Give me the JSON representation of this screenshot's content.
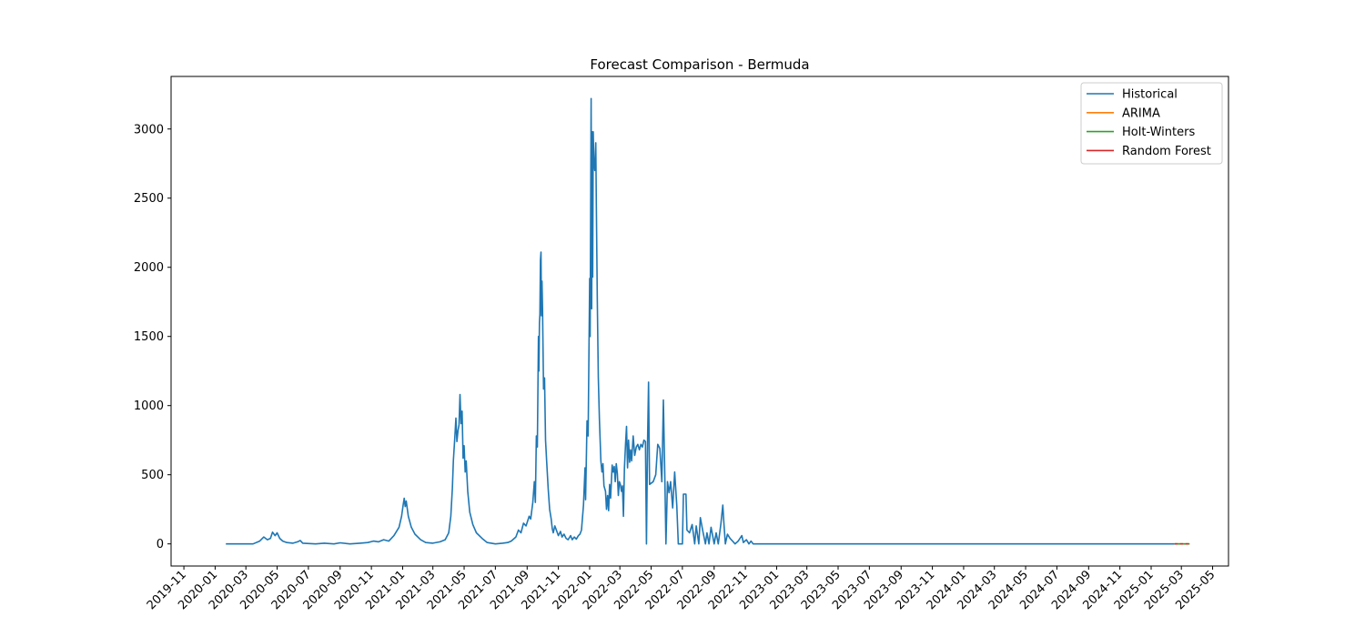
{
  "chart_data": {
    "type": "line",
    "title": "Forecast Comparison - Bermuda",
    "xlabel": "",
    "ylabel": "",
    "xlim": [
      "2019-10-07",
      "2025-06-01"
    ],
    "ylim": [
      -160,
      3380
    ],
    "y_ticks": [
      0,
      500,
      1000,
      1500,
      2000,
      2500,
      3000
    ],
    "x_ticks": [
      "2019-11",
      "2020-01",
      "2020-03",
      "2020-05",
      "2020-07",
      "2020-09",
      "2020-11",
      "2021-01",
      "2021-03",
      "2021-05",
      "2021-07",
      "2021-09",
      "2021-11",
      "2022-01",
      "2022-03",
      "2022-05",
      "2022-07",
      "2022-09",
      "2022-11",
      "2023-01",
      "2023-03",
      "2023-05",
      "2023-07",
      "2023-09",
      "2023-11",
      "2024-01",
      "2024-03",
      "2024-05",
      "2024-07",
      "2024-09",
      "2024-11",
      "2025-01",
      "2025-03",
      "2025-05"
    ],
    "grid": false,
    "legend_position": "top-right",
    "series": [
      {
        "name": "Historical",
        "color": "#1f77b4",
        "points": [
          [
            "2020-01-22",
            0
          ],
          [
            "2020-03-15",
            0
          ],
          [
            "2020-03-28",
            20
          ],
          [
            "2020-04-05",
            50
          ],
          [
            "2020-04-12",
            30
          ],
          [
            "2020-04-18",
            40
          ],
          [
            "2020-04-22",
            85
          ],
          [
            "2020-04-27",
            60
          ],
          [
            "2020-05-01",
            80
          ],
          [
            "2020-05-06",
            40
          ],
          [
            "2020-05-12",
            20
          ],
          [
            "2020-05-20",
            10
          ],
          [
            "2020-06-01",
            5
          ],
          [
            "2020-06-10",
            15
          ],
          [
            "2020-06-15",
            25
          ],
          [
            "2020-06-20",
            5
          ],
          [
            "2020-07-15",
            0
          ],
          [
            "2020-08-01",
            5
          ],
          [
            "2020-08-20",
            0
          ],
          [
            "2020-09-01",
            8
          ],
          [
            "2020-09-20",
            0
          ],
          [
            "2020-10-10",
            5
          ],
          [
            "2020-10-25",
            10
          ],
          [
            "2020-11-05",
            20
          ],
          [
            "2020-11-15",
            15
          ],
          [
            "2020-11-25",
            30
          ],
          [
            "2020-12-05",
            20
          ],
          [
            "2020-12-15",
            60
          ],
          [
            "2020-12-25",
            120
          ],
          [
            "2020-12-30",
            200
          ],
          [
            "2021-01-02",
            280
          ],
          [
            "2021-01-04",
            330
          ],
          [
            "2021-01-06",
            270
          ],
          [
            "2021-01-08",
            310
          ],
          [
            "2021-01-12",
            200
          ],
          [
            "2021-01-18",
            120
          ],
          [
            "2021-01-25",
            70
          ],
          [
            "2021-02-05",
            30
          ],
          [
            "2021-02-15",
            10
          ],
          [
            "2021-03-01",
            5
          ],
          [
            "2021-03-15",
            15
          ],
          [
            "2021-03-25",
            30
          ],
          [
            "2021-04-01",
            80
          ],
          [
            "2021-04-05",
            200
          ],
          [
            "2021-04-08",
            400
          ],
          [
            "2021-04-10",
            600
          ],
          [
            "2021-04-13",
            780
          ],
          [
            "2021-04-15",
            910
          ],
          [
            "2021-04-17",
            740
          ],
          [
            "2021-04-19",
            820
          ],
          [
            "2021-04-21",
            860
          ],
          [
            "2021-04-23",
            1080
          ],
          [
            "2021-04-25",
            870
          ],
          [
            "2021-04-27",
            960
          ],
          [
            "2021-04-29",
            620
          ],
          [
            "2021-05-01",
            710
          ],
          [
            "2021-05-03",
            520
          ],
          [
            "2021-05-05",
            600
          ],
          [
            "2021-05-08",
            380
          ],
          [
            "2021-05-12",
            230
          ],
          [
            "2021-05-18",
            140
          ],
          [
            "2021-05-25",
            80
          ],
          [
            "2021-06-05",
            40
          ],
          [
            "2021-06-15",
            10
          ],
          [
            "2021-07-01",
            0
          ],
          [
            "2021-07-15",
            5
          ],
          [
            "2021-07-25",
            10
          ],
          [
            "2021-08-01",
            20
          ],
          [
            "2021-08-10",
            50
          ],
          [
            "2021-08-15",
            100
          ],
          [
            "2021-08-20",
            80
          ],
          [
            "2021-08-25",
            150
          ],
          [
            "2021-08-30",
            130
          ],
          [
            "2021-09-05",
            200
          ],
          [
            "2021-09-08",
            180
          ],
          [
            "2021-09-12",
            300
          ],
          [
            "2021-09-15",
            450
          ],
          [
            "2021-09-17",
            300
          ],
          [
            "2021-09-19",
            780
          ],
          [
            "2021-09-21",
            700
          ],
          [
            "2021-09-23",
            1500
          ],
          [
            "2021-09-24",
            1250
          ],
          [
            "2021-09-25",
            1600
          ],
          [
            "2021-09-26",
            1660
          ],
          [
            "2021-09-27",
            2050
          ],
          [
            "2021-09-28",
            2110
          ],
          [
            "2021-09-29",
            1650
          ],
          [
            "2021-09-30",
            1900
          ],
          [
            "2021-10-01",
            1700
          ],
          [
            "2021-10-03",
            1120
          ],
          [
            "2021-10-05",
            1200
          ],
          [
            "2021-10-07",
            750
          ],
          [
            "2021-10-09",
            600
          ],
          [
            "2021-10-12",
            400
          ],
          [
            "2021-10-15",
            250
          ],
          [
            "2021-10-18",
            180
          ],
          [
            "2021-10-20",
            110
          ],
          [
            "2021-10-22",
            80
          ],
          [
            "2021-10-25",
            130
          ],
          [
            "2021-10-28",
            100
          ],
          [
            "2021-11-01",
            60
          ],
          [
            "2021-11-05",
            90
          ],
          [
            "2021-11-08",
            50
          ],
          [
            "2021-11-12",
            70
          ],
          [
            "2021-11-16",
            40
          ],
          [
            "2021-11-20",
            30
          ],
          [
            "2021-11-25",
            60
          ],
          [
            "2021-11-28",
            30
          ],
          [
            "2021-12-02",
            50
          ],
          [
            "2021-12-06",
            35
          ],
          [
            "2021-12-10",
            60
          ],
          [
            "2021-12-13",
            70
          ],
          [
            "2021-12-16",
            100
          ],
          [
            "2021-12-20",
            280
          ],
          [
            "2021-12-23",
            550
          ],
          [
            "2021-12-24",
            320
          ],
          [
            "2021-12-27",
            890
          ],
          [
            "2021-12-29",
            780
          ],
          [
            "2022-01-01",
            1920
          ],
          [
            "2022-01-02",
            1500
          ],
          [
            "2022-01-04",
            3220
          ],
          [
            "2022-01-05",
            1700
          ],
          [
            "2022-01-06",
            2980
          ],
          [
            "2022-01-07",
            1930
          ],
          [
            "2022-01-08",
            2980
          ],
          [
            "2022-01-09",
            2780
          ],
          [
            "2022-01-11",
            2700
          ],
          [
            "2022-01-13",
            2900
          ],
          [
            "2022-01-14",
            2460
          ],
          [
            "2022-01-16",
            1750
          ],
          [
            "2022-01-18",
            1200
          ],
          [
            "2022-01-20",
            900
          ],
          [
            "2022-01-23",
            600
          ],
          [
            "2022-01-25",
            520
          ],
          [
            "2022-01-27",
            580
          ],
          [
            "2022-01-29",
            420
          ],
          [
            "2022-02-01",
            380
          ],
          [
            "2022-02-03",
            250
          ],
          [
            "2022-02-05",
            350
          ],
          [
            "2022-02-07",
            240
          ],
          [
            "2022-02-09",
            430
          ],
          [
            "2022-02-11",
            330
          ],
          [
            "2022-02-14",
            570
          ],
          [
            "2022-02-16",
            520
          ],
          [
            "2022-02-18",
            560
          ],
          [
            "2022-02-20",
            450
          ],
          [
            "2022-02-22",
            580
          ],
          [
            "2022-02-24",
            510
          ],
          [
            "2022-02-26",
            350
          ],
          [
            "2022-02-28",
            450
          ],
          [
            "2022-03-02",
            430
          ],
          [
            "2022-03-04",
            380
          ],
          [
            "2022-03-06",
            420
          ],
          [
            "2022-03-08",
            200
          ],
          [
            "2022-03-10",
            550
          ],
          [
            "2022-03-12",
            720
          ],
          [
            "2022-03-14",
            850
          ],
          [
            "2022-03-16",
            550
          ],
          [
            "2022-03-18",
            750
          ],
          [
            "2022-03-20",
            590
          ],
          [
            "2022-03-22",
            680
          ],
          [
            "2022-03-24",
            600
          ],
          [
            "2022-03-27",
            780
          ],
          [
            "2022-03-30",
            640
          ],
          [
            "2022-04-02",
            700
          ],
          [
            "2022-04-05",
            720
          ],
          [
            "2022-04-08",
            680
          ],
          [
            "2022-04-11",
            720
          ],
          [
            "2022-04-14",
            700
          ],
          [
            "2022-04-17",
            750
          ],
          [
            "2022-04-20",
            740
          ],
          [
            "2022-04-22",
            0
          ],
          [
            "2022-04-24",
            740
          ],
          [
            "2022-04-26",
            1170
          ],
          [
            "2022-04-28",
            430
          ],
          [
            "2022-05-05",
            450
          ],
          [
            "2022-05-10",
            500
          ],
          [
            "2022-05-14",
            720
          ],
          [
            "2022-05-18",
            690
          ],
          [
            "2022-05-22",
            450
          ],
          [
            "2022-05-25",
            1040
          ],
          [
            "2022-05-28",
            440
          ],
          [
            "2022-05-30",
            0
          ],
          [
            "2022-06-02",
            450
          ],
          [
            "2022-06-05",
            370
          ],
          [
            "2022-06-08",
            450
          ],
          [
            "2022-06-12",
            260
          ],
          [
            "2022-06-16",
            520
          ],
          [
            "2022-06-20",
            280
          ],
          [
            "2022-06-23",
            0
          ],
          [
            "2022-07-01",
            0
          ],
          [
            "2022-07-03",
            360
          ],
          [
            "2022-07-08",
            360
          ],
          [
            "2022-07-10",
            100
          ],
          [
            "2022-07-15",
            80
          ],
          [
            "2022-07-20",
            140
          ],
          [
            "2022-07-25",
            0
          ],
          [
            "2022-07-28",
            130
          ],
          [
            "2022-08-02",
            0
          ],
          [
            "2022-08-05",
            190
          ],
          [
            "2022-08-10",
            90
          ],
          [
            "2022-08-15",
            0
          ],
          [
            "2022-08-18",
            80
          ],
          [
            "2022-08-22",
            0
          ],
          [
            "2022-08-26",
            120
          ],
          [
            "2022-09-01",
            0
          ],
          [
            "2022-09-05",
            80
          ],
          [
            "2022-09-09",
            0
          ],
          [
            "2022-09-14",
            140
          ],
          [
            "2022-09-18",
            280
          ],
          [
            "2022-09-20",
            150
          ],
          [
            "2022-09-23",
            0
          ],
          [
            "2022-09-27",
            70
          ],
          [
            "2022-10-02",
            40
          ],
          [
            "2022-10-07",
            20
          ],
          [
            "2022-10-12",
            0
          ],
          [
            "2022-10-18",
            20
          ],
          [
            "2022-10-25",
            60
          ],
          [
            "2022-10-28",
            10
          ],
          [
            "2022-11-03",
            30
          ],
          [
            "2022-11-08",
            0
          ],
          [
            "2022-11-12",
            20
          ],
          [
            "2022-11-16",
            0
          ],
          [
            "2022-11-21",
            0
          ],
          [
            "2025-02-16",
            0
          ]
        ]
      },
      {
        "name": "ARIMA",
        "color": "#ff7f0e",
        "points": [
          [
            "2025-02-16",
            0
          ],
          [
            "2025-03-17",
            0
          ]
        ]
      },
      {
        "name": "Holt-Winters",
        "color": "#2ca02c",
        "points": [
          [
            "2025-02-16",
            0
          ],
          [
            "2025-03-17",
            0
          ]
        ]
      },
      {
        "name": "Random Forest",
        "color": "#d62728",
        "points": [
          [
            "2025-02-16",
            0
          ],
          [
            "2025-03-17",
            0
          ]
        ],
        "dashed": true
      }
    ]
  }
}
